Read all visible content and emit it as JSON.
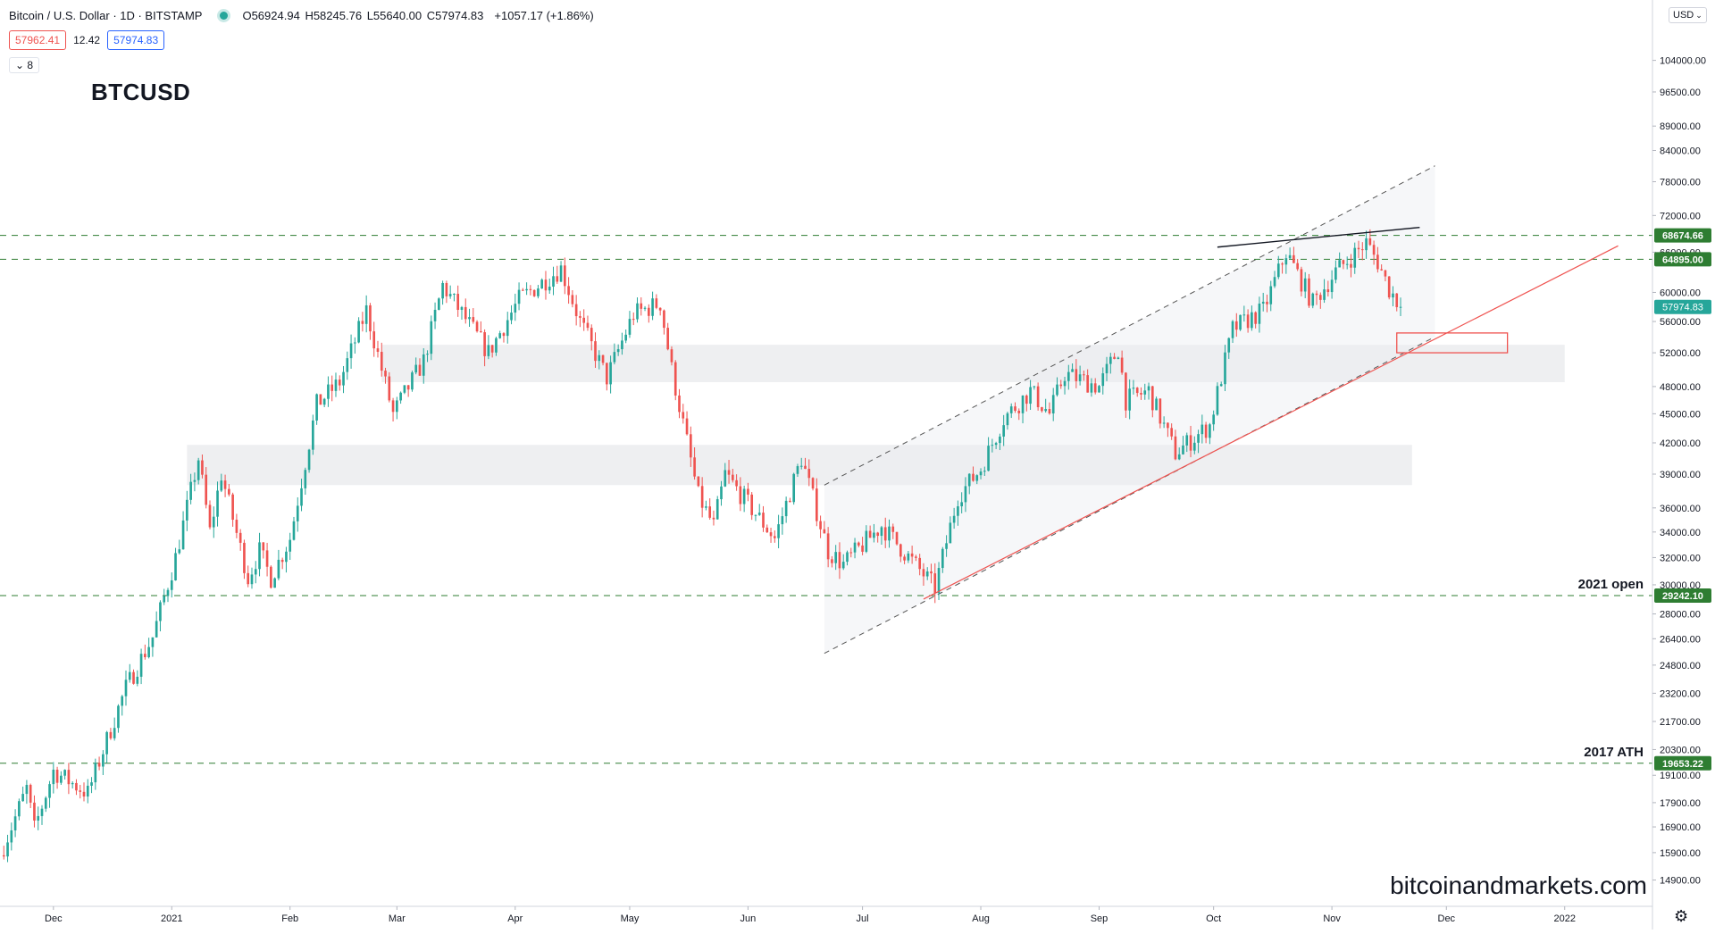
{
  "header": {
    "symbol_title": "Bitcoin / U.S. Dollar · 1D · BITSTAMP",
    "open": "O56924.94",
    "high": "H58245.76",
    "low": "L55640.00",
    "close": "C57974.83",
    "change": "+1057.17 (+1.86%)"
  },
  "order_boxes": {
    "bid": "57962.41",
    "spread": "12.42",
    "ask": "57974.83"
  },
  "indicator_toggle": "8",
  "currency": "USD",
  "big_title": "BTCUSD",
  "watermark": "bitcoinandmarkets.com",
  "colors": {
    "up": "#26a69a",
    "down": "#ef5350",
    "support": "#ef5350",
    "level_line": "#2e7d32",
    "level_label": "#2e7d32",
    "last_price": "#26a69a",
    "zone": "#d9dbe0"
  },
  "chart_data": {
    "type": "candlestick",
    "scale": "log",
    "ylim": [
      14000,
      120000
    ],
    "y_ticks": [
      104000,
      96500,
      89000,
      84000,
      78000,
      72000,
      66000,
      60000,
      56000,
      52000,
      48000,
      45000,
      42000,
      39000,
      36000,
      34000,
      32000,
      30000,
      28000,
      26400,
      24800,
      23200,
      21700,
      20300,
      19100,
      17900,
      16900,
      15900,
      14900
    ],
    "y_tick_labels": [
      "104000.00",
      "96500.00",
      "89000.00",
      "84000.00",
      "78000.00",
      "72000.00",
      "66000.00",
      "60000.00",
      "56000.00",
      "52000.00",
      "48000.00",
      "45000.00",
      "42000.00",
      "39000.00",
      "36000.00",
      "34000.00",
      "32000.00",
      "30000.00",
      "28000.00",
      "26400.00",
      "24800.00",
      "23200.00",
      "21700.00",
      "20300.00",
      "19100.00",
      "17900.00",
      "16900.00",
      "15900.00",
      "14900.00"
    ],
    "x_ticks": [
      {
        "label": "Dec",
        "date": "2020-12-01"
      },
      {
        "label": "2021",
        "date": "2021-01-01"
      },
      {
        "label": "Feb",
        "date": "2021-02-01"
      },
      {
        "label": "Mar",
        "date": "2021-03-01"
      },
      {
        "label": "Apr",
        "date": "2021-04-01"
      },
      {
        "label": "May",
        "date": "2021-05-01"
      },
      {
        "label": "Jun",
        "date": "2021-06-01"
      },
      {
        "label": "Jul",
        "date": "2021-07-01"
      },
      {
        "label": "Aug",
        "date": "2021-08-01"
      },
      {
        "label": "Sep",
        "date": "2021-09-01"
      },
      {
        "label": "Oct",
        "date": "2021-10-01"
      },
      {
        "label": "Nov",
        "date": "2021-11-01"
      },
      {
        "label": "Dec",
        "date": "2021-12-01"
      },
      {
        "label": "2022",
        "date": "2022-01-01"
      }
    ],
    "x_range": [
      "2020-11-17",
      "2022-01-24"
    ],
    "price_path": [
      {
        "date": "2020-11-17",
        "price": 15800
      },
      {
        "date": "2020-11-24",
        "price": 18500
      },
      {
        "date": "2020-11-26",
        "price": 16800
      },
      {
        "date": "2020-12-01",
        "price": 19300
      },
      {
        "date": "2020-12-10",
        "price": 18300
      },
      {
        "date": "2020-12-16",
        "price": 21300
      },
      {
        "date": "2020-12-20",
        "price": 23500
      },
      {
        "date": "2020-12-27",
        "price": 26500
      },
      {
        "date": "2021-01-02",
        "price": 32000
      },
      {
        "date": "2021-01-08",
        "price": 40500
      },
      {
        "date": "2021-01-11",
        "price": 34000
      },
      {
        "date": "2021-01-14",
        "price": 39000
      },
      {
        "date": "2021-01-21",
        "price": 30500
      },
      {
        "date": "2021-01-24",
        "price": 32500
      },
      {
        "date": "2021-01-27",
        "price": 30500
      },
      {
        "date": "2021-02-01",
        "price": 33500
      },
      {
        "date": "2021-02-08",
        "price": 46000
      },
      {
        "date": "2021-02-14",
        "price": 48500
      },
      {
        "date": "2021-02-21",
        "price": 57500
      },
      {
        "date": "2021-02-28",
        "price": 45000
      },
      {
        "date": "2021-03-08",
        "price": 51000
      },
      {
        "date": "2021-03-13",
        "price": 61000
      },
      {
        "date": "2021-03-25",
        "price": 52000
      },
      {
        "date": "2021-04-02",
        "price": 59000
      },
      {
        "date": "2021-04-13",
        "price": 63500
      },
      {
        "date": "2021-04-18",
        "price": 56000
      },
      {
        "date": "2021-04-25",
        "price": 49000
      },
      {
        "date": "2021-05-02",
        "price": 57000
      },
      {
        "date": "2021-05-09",
        "price": 58500
      },
      {
        "date": "2021-05-12",
        "price": 50000
      },
      {
        "date": "2021-05-19",
        "price": 37000
      },
      {
        "date": "2021-05-23",
        "price": 34500
      },
      {
        "date": "2021-05-26",
        "price": 39000
      },
      {
        "date": "2021-06-08",
        "price": 33500
      },
      {
        "date": "2021-06-15",
        "price": 40500
      },
      {
        "date": "2021-06-22",
        "price": 32500
      },
      {
        "date": "2021-06-26",
        "price": 31500
      },
      {
        "date": "2021-07-06",
        "price": 34500
      },
      {
        "date": "2021-07-20",
        "price": 29800
      },
      {
        "date": "2021-07-26",
        "price": 37000
      },
      {
        "date": "2021-08-01",
        "price": 39500
      },
      {
        "date": "2021-08-07",
        "price": 44500
      },
      {
        "date": "2021-08-14",
        "price": 47500
      },
      {
        "date": "2021-08-19",
        "price": 45000
      },
      {
        "date": "2021-08-23",
        "price": 49500
      },
      {
        "date": "2021-09-01",
        "price": 48000
      },
      {
        "date": "2021-09-06",
        "price": 52500
      },
      {
        "date": "2021-09-08",
        "price": 46500
      },
      {
        "date": "2021-09-14",
        "price": 47500
      },
      {
        "date": "2021-09-21",
        "price": 41000
      },
      {
        "date": "2021-09-30",
        "price": 43800
      },
      {
        "date": "2021-10-06",
        "price": 55000
      },
      {
        "date": "2021-10-14",
        "price": 57500
      },
      {
        "date": "2021-10-20",
        "price": 66000
      },
      {
        "date": "2021-10-27",
        "price": 58500
      },
      {
        "date": "2021-11-02",
        "price": 63000
      },
      {
        "date": "2021-11-10",
        "price": 67500
      },
      {
        "date": "2021-11-13",
        "price": 64500
      },
      {
        "date": "2021-11-16",
        "price": 60500
      },
      {
        "date": "2021-11-19",
        "price": 57974.83
      }
    ],
    "horizontal_levels": [
      {
        "label": "68674.66",
        "price": 68674.66
      },
      {
        "label": "64895.00",
        "price": 64895.0
      },
      {
        "label": "29242.10",
        "price": 29242.1,
        "annotation": "2021 open"
      },
      {
        "label": "19653.22",
        "price": 19653.22,
        "annotation": "2017 ATH"
      }
    ],
    "last_price": {
      "label": "57974.83",
      "price": 57974.83
    },
    "zones": [
      {
        "from_date": "2021-02-25",
        "to_date": "2022-01-01",
        "low": 48500,
        "high": 53000
      },
      {
        "from_date": "2021-01-05",
        "to_date": "2021-11-22",
        "low": 38000,
        "high": 41800
      }
    ],
    "channel": {
      "upper": [
        {
          "date": "2021-06-21",
          "price": 38000
        },
        {
          "date": "2021-11-28",
          "price": 81000
        }
      ],
      "lower": [
        {
          "date": "2021-06-21",
          "price": 25500
        },
        {
          "date": "2021-11-28",
          "price": 54000
        }
      ],
      "shade_to_date": "2021-11-28"
    },
    "support_line": [
      {
        "date": "2021-07-17",
        "price": 29000
      },
      {
        "date": "2022-01-15",
        "price": 67000
      }
    ],
    "target_box": {
      "from_date": "2021-11-18",
      "to_date": "2021-12-17",
      "low": 52000,
      "high": 54500
    },
    "resistance_line": [
      {
        "date": "2021-10-02",
        "price": 66800
      },
      {
        "date": "2021-11-24",
        "price": 70000
      }
    ]
  }
}
